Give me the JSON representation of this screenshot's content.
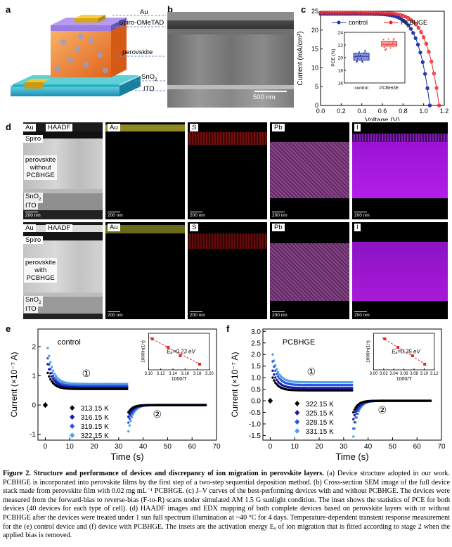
{
  "panels": {
    "a": "a",
    "b": "b",
    "c": "c",
    "d": "d",
    "e": "e",
    "f": "f"
  },
  "panel_a": {
    "layers": {
      "au": "Au",
      "spiro": "Spiro-OMeTAD",
      "perovskite": "perovskite",
      "sno2": "SnO",
      "sno2_sub": "2",
      "ito": "ITO"
    }
  },
  "panel_b": {
    "scale_bar": "500 nm"
  },
  "panel_d": {
    "row1": {
      "haadf": "HAADF",
      "au": "Au",
      "spiro": "Spiro",
      "perov": [
        "perovskite",
        "without",
        "PCBHGE"
      ],
      "sno2": "SnO",
      "sno2_sub": "2",
      "ito": "ITO",
      "maps": [
        "Au",
        "S",
        "Pb",
        "I"
      ]
    },
    "row2": {
      "haadf": "HAADF",
      "au": "Au",
      "spiro": "Spiro",
      "perov": [
        "perovskite",
        "with",
        "PCBHGE"
      ],
      "sno2": "SnO",
      "sno2_sub": "2",
      "ito": "ITO",
      "maps": [
        "Au",
        "S",
        "Pb",
        "I"
      ]
    },
    "scale": "200 nm",
    "colors": {
      "Au": "#c9c64a",
      "S": "#d42020",
      "Pb": "#b552b8",
      "I": "#b21ee8"
    }
  },
  "chart_data": [
    {
      "id": "c",
      "type": "line",
      "xlabel": "Voltage (V)",
      "ylabel": "Current (mA/cm²)",
      "xlim": [
        0.0,
        1.2
      ],
      "ylim": [
        0,
        25
      ],
      "xticks": [
        "0.0",
        "0.2",
        "0.4",
        "0.6",
        "0.8",
        "1.0",
        "1.2"
      ],
      "yticks": [
        "0",
        "5",
        "10",
        "15",
        "20",
        "25"
      ],
      "legend_position": "top",
      "series": [
        {
          "name": "control",
          "color": "#1f2fa8",
          "jsc": 24.3,
          "voc": 1.06
        },
        {
          "name": "PCBHGE",
          "color": "#e8262a",
          "jsc": 24.6,
          "voc": 1.15
        }
      ],
      "inset": {
        "type": "box",
        "ylabel": "PCE (%)",
        "ylim": [
          16,
          24
        ],
        "yticks": [
          "16",
          "18",
          "20",
          "22",
          "24"
        ],
        "categories": [
          "control",
          "PCBHGE"
        ],
        "medians": [
          20.2,
          22.1
        ],
        "q1": [
          19.6,
          21.8
        ],
        "q3": [
          20.7,
          22.6
        ],
        "colors": [
          "#2639a8",
          "#e84a4a"
        ]
      }
    },
    {
      "id": "e",
      "type": "scatter",
      "title": "control",
      "xlabel": "Time (s)",
      "ylabel": "Current (×10⁻⁷ A)",
      "xlim": [
        -3,
        70
      ],
      "ylim": [
        -1.2,
        2.6
      ],
      "xticks": [
        "0",
        "10",
        "20",
        "30",
        "40",
        "50",
        "60",
        "70"
      ],
      "yticks": [
        "-1",
        "0",
        "1",
        "2"
      ],
      "annotations": [
        "①",
        "②"
      ],
      "legend": [
        "313.15 K",
        "316.15 K",
        "319.15 K",
        "322.15 K"
      ],
      "colors": [
        "#000000",
        "#1a1aa8",
        "#2a55e0",
        "#4aa3e8"
      ],
      "stage1_start": [
        1.1,
        1.4,
        1.6,
        1.95
      ],
      "stage1_end": [
        0.55,
        0.6,
        0.65,
        0.72
      ],
      "stage2_start": [
        -0.25,
        -0.4,
        -0.6,
        -0.9
      ],
      "inset": {
        "xlabel": "1000/T",
        "ylabel": "1000ln(1/τ)",
        "xlim": [
          3.1,
          3.2
        ],
        "xticks": [
          "3.10",
          "3.12",
          "3.14",
          "3.16",
          "3.18",
          "3.20"
        ],
        "x": [
          3.106,
          3.132,
          3.152,
          3.184
        ],
        "annotation": "Eₐ=0.23 eV"
      }
    },
    {
      "id": "f",
      "type": "scatter",
      "title": "PCBHGE",
      "xlabel": "Time (s)",
      "ylabel": "Current (×10⁻⁷ A)",
      "xlim": [
        -3,
        70
      ],
      "ylim": [
        -1.7,
        3.1
      ],
      "xticks": [
        "0",
        "10",
        "20",
        "30",
        "40",
        "50",
        "60",
        "70"
      ],
      "yticks": [
        "-1.5",
        "-1.0",
        "-0.5",
        "0.0",
        "0.5",
        "1.0",
        "1.5",
        "2.0",
        "2.5",
        "3.0"
      ],
      "annotations": [
        "①",
        "②"
      ],
      "legend": [
        "322.15 K",
        "325.15 K",
        "328.15 K",
        "331.15 K"
      ],
      "colors": [
        "#000000",
        "#1a1aa8",
        "#2a55e0",
        "#4aa3e8"
      ],
      "stage1_start": [
        1.0,
        1.3,
        1.7,
        2.0
      ],
      "stage1_end": [
        0.45,
        0.55,
        0.68,
        0.8
      ],
      "stage2_start": [
        -0.5,
        -0.8,
        -1.2,
        -1.55
      ],
      "inset": {
        "xlabel": "1000/T",
        "ylabel": "1000ln(1/τ)",
        "xlim": [
          3.0,
          3.12
        ],
        "xticks": [
          "3.00",
          "3.02",
          "3.04",
          "3.06",
          "3.08",
          "3.10",
          "3.12"
        ],
        "x": [
          3.022,
          3.048,
          3.077,
          3.101
        ],
        "annotation": "Eₐ=0.35 eV"
      }
    }
  ],
  "caption": {
    "lead": "Figure 2. Structure and performance of devices and discrepancy of ion migration in perovskite layers.",
    "body": " (a) Device structure adopted in our work. PCBHGE is incorporated into perovskite films by the first step of a two-step sequential deposition method. (b) Cross-section SEM image of the full device stack made from perovskite film with 0.02 mg mL⁻¹ PCBHGE. (c) J–V curves of the best-performing devices with and without PCBHGE. The devices were measured from the forward-bias to reverse-bias (F-to-R) scans under simulated AM 1.5 G sunlight condition. The inset shows the statistics of PCE for both devices (40 devices for each type of cell). (d) HAADF images and EDX mapping of both complete devices based on perovskite layers with or without PCBHGE after the devices were treated under 1 sun full spectrum illumination at ~40 °C for 4 days. Temperature-dependent transient response measurement for the (e) control device and (f) device with PCBHGE. The insets are the activation energy Eₐ of ion migration that is fitted according to stage 2 when the applied bias is removed."
  }
}
